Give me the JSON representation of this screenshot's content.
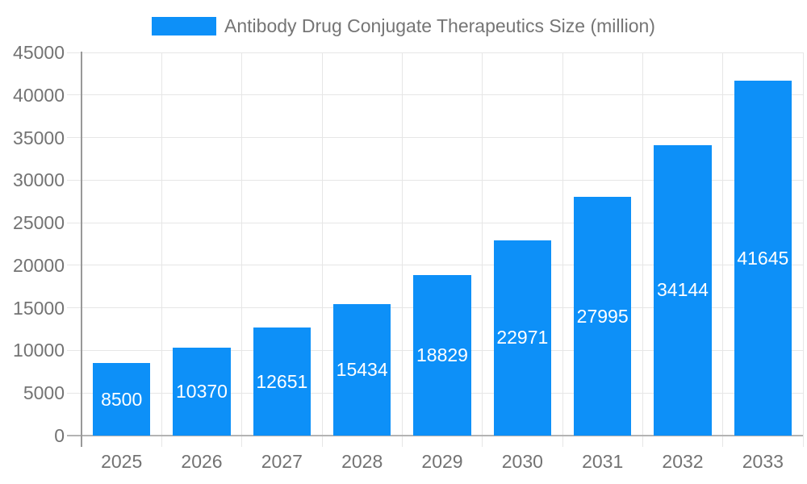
{
  "chart_data": {
    "type": "bar",
    "title": "Antibody Drug Conjugate Therapeutics Size (million)",
    "legend_entries": [
      "Antibody Drug Conjugate Therapeutics Size (million)"
    ],
    "legend_position": "top-center",
    "categories": [
      "2025",
      "2026",
      "2027",
      "2028",
      "2029",
      "2030",
      "2031",
      "2032",
      "2033"
    ],
    "values": [
      8500,
      10370,
      12651,
      15434,
      18829,
      22971,
      27995,
      34144,
      41645
    ],
    "bar_value_labels": [
      "8500",
      "10370",
      "12651",
      "15434",
      "18829",
      "22971",
      "27995",
      "34144",
      "41645"
    ],
    "xlabel": "",
    "ylabel": "",
    "ylim": [
      0,
      45000
    ],
    "ytick_step": 5000,
    "ytick_labels": [
      "0",
      "5000",
      "10000",
      "15000",
      "20000",
      "25000",
      "30000",
      "35000",
      "40000",
      "45000"
    ],
    "grid": true,
    "colors": {
      "bar": "#0d90f8",
      "bar_value_text": "#ffffff",
      "gridline": "#e6e6e6",
      "x_axis_line": "#b3b3b3",
      "y_axis_line": "#999999",
      "tick_label_text": "#737373",
      "legend_text": "#757575"
    }
  }
}
